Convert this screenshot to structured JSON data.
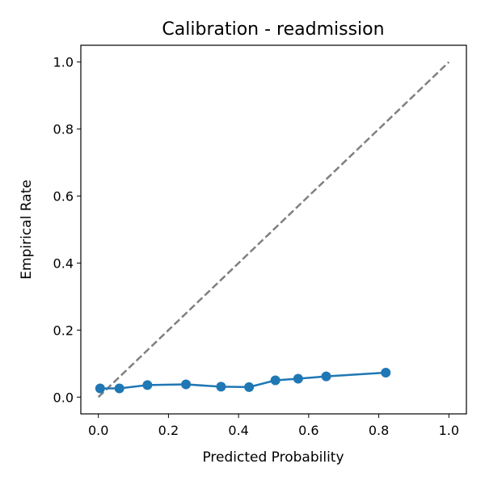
{
  "chart_data": {
    "type": "line",
    "title": "Calibration - readmission",
    "xlabel": "Predicted Probability",
    "ylabel": "Empirical Rate",
    "xlim": [
      -0.05,
      1.05
    ],
    "ylim": [
      -0.05,
      1.05
    ],
    "x_ticks": [
      0.0,
      0.2,
      0.4,
      0.6,
      0.8,
      1.0
    ],
    "y_ticks": [
      0.0,
      0.2,
      0.4,
      0.6,
      0.8,
      1.0
    ],
    "x_tick_labels": [
      "0.0",
      "0.2",
      "0.4",
      "0.6",
      "0.8",
      "1.0"
    ],
    "y_tick_labels": [
      "0.0",
      "0.2",
      "0.4",
      "0.6",
      "0.8",
      "1.0"
    ],
    "grid": false,
    "series": [
      {
        "style": "line-with-circle-markers",
        "color": "#1f77b4",
        "x": [
          0.005,
          0.06,
          0.14,
          0.25,
          0.35,
          0.43,
          0.505,
          0.57,
          0.65,
          0.82
        ],
        "y": [
          0.026,
          0.026,
          0.036,
          0.038,
          0.031,
          0.03,
          0.05,
          0.055,
          0.062,
          0.073
        ]
      },
      {
        "style": "dashed-diagonal-reference",
        "color": "#808080",
        "x": [
          0.0,
          1.0
        ],
        "y": [
          0.0,
          1.0
        ]
      }
    ]
  }
}
